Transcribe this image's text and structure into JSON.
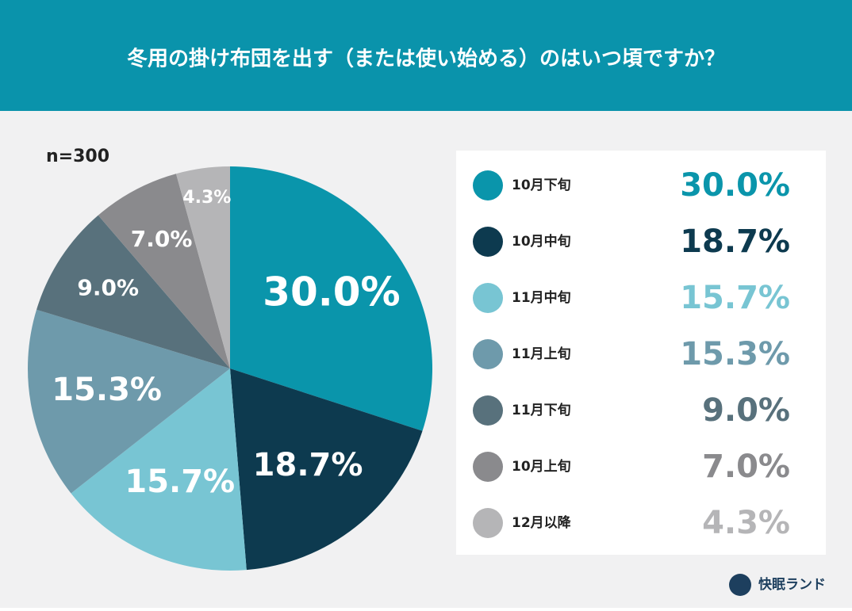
{
  "chart_data": {
    "type": "pie",
    "title": "冬用の掛け布団を出す（または使い始める）のはいつ頃ですか？",
    "subtitle": "n=300",
    "categories": [
      "10月下旬",
      "10月中旬",
      "11月中旬",
      "11月上旬",
      "11月下旬",
      "10月上旬",
      "12月以降"
    ],
    "values": [
      30.0,
      18.7,
      15.7,
      15.3,
      9.0,
      7.0,
      4.3
    ],
    "value_labels": [
      "30.0%",
      "18.7%",
      "15.7%",
      "15.3%",
      "9.0%",
      "7.0%",
      "4.3%"
    ],
    "colors": [
      "#0a95ab",
      "#0d3a4f",
      "#78c5d3",
      "#6e9aab",
      "#58717c",
      "#8a8a8d",
      "#b5b5b7"
    ],
    "legend": "right",
    "brand": "快眠ランド"
  }
}
